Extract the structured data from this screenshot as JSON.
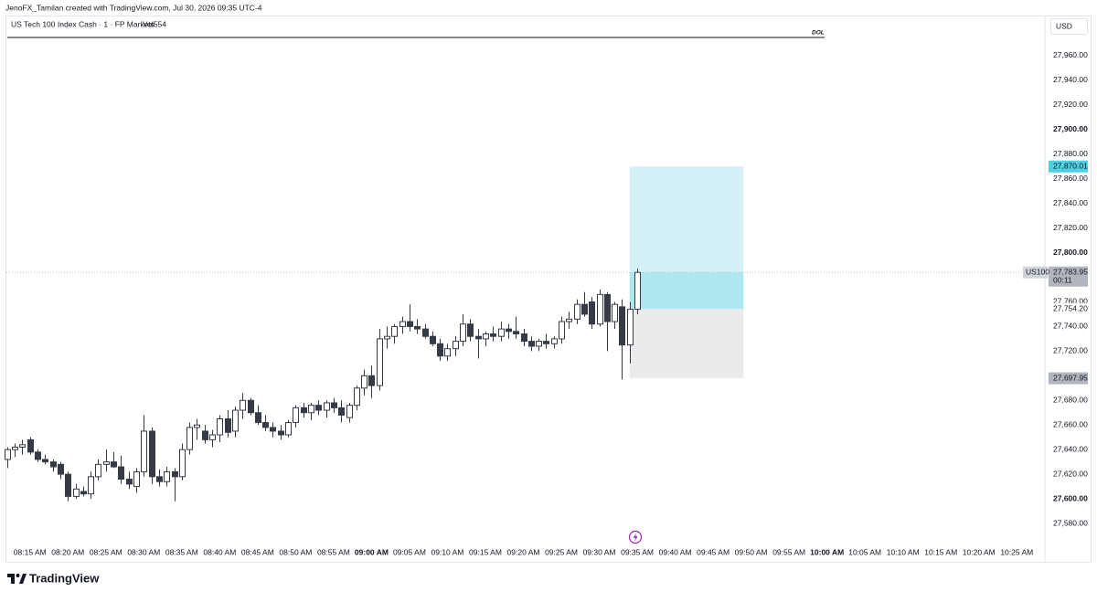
{
  "header": "JenoFX_Tamilan created with TradingView.com, Jul 30, 2026 09:35 UTC-4",
  "footer": "TradingView",
  "chart_data": {
    "type": "candlestick",
    "title": "US Tech 100 Index Cash · 1 · FP Markets",
    "volume_label": "Vol554",
    "currency": "USD",
    "symbol": "US100",
    "countdown": "00:11",
    "annotation": "DOL",
    "colors": {
      "up": "#ffffff",
      "down": "#363a45",
      "border": "#363a45"
    },
    "x": [
      492,
      493,
      494,
      495,
      496,
      497,
      498,
      499,
      500,
      501,
      502,
      503,
      504,
      505,
      506,
      507,
      508,
      509,
      510,
      511,
      512,
      513,
      514,
      515,
      516,
      517,
      518,
      519,
      520,
      521,
      522,
      523,
      524,
      525,
      526,
      527,
      528,
      529,
      530,
      531,
      532,
      533,
      534,
      535,
      536,
      537,
      538,
      539,
      540,
      541,
      542,
      543,
      544,
      545,
      546,
      547,
      548,
      549,
      550,
      551,
      552,
      553,
      554,
      555,
      556,
      557,
      558,
      559,
      560,
      561,
      562,
      563,
      564,
      565,
      566,
      567,
      568,
      569,
      570,
      571,
      572,
      573,
      574,
      575
    ],
    "open": [
      27632,
      27640,
      27642,
      27648,
      27638,
      27632,
      27630,
      27628,
      27620,
      27602,
      27606,
      27604,
      27618,
      27628,
      27630,
      27626,
      27616,
      27610,
      27622,
      27655,
      27618,
      27614,
      27622,
      27618,
      27640,
      27658,
      27655,
      27648,
      27652,
      27665,
      27655,
      27672,
      27680,
      27670,
      27662,
      27658,
      27655,
      27652,
      27662,
      27674,
      27670,
      27676,
      27672,
      27678,
      27674,
      27666,
      27676,
      27690,
      27700,
      27692,
      27730,
      27732,
      27740,
      27744,
      27740,
      27738,
      27732,
      27726,
      27716,
      27722,
      27728,
      27742,
      27732,
      27730,
      27734,
      27732,
      27738,
      27736,
      27734,
      27728,
      27724,
      27728,
      27726,
      27730,
      27744,
      27746,
      27758,
      27760,
      27742,
      27766,
      27744,
      27756,
      27725,
      27754
    ],
    "high": [
      27642,
      27645,
      27648,
      27650,
      27640,
      27636,
      27632,
      27630,
      27622,
      27612,
      27610,
      27622,
      27632,
      27640,
      27638,
      27635,
      27622,
      27625,
      27668,
      27658,
      27624,
      27626,
      27625,
      27645,
      27662,
      27665,
      27660,
      27656,
      27668,
      27672,
      27675,
      27686,
      27682,
      27676,
      27668,
      27662,
      27660,
      27664,
      27676,
      27678,
      27678,
      27680,
      27680,
      27682,
      27680,
      27678,
      27692,
      27705,
      27708,
      27738,
      27740,
      27742,
      27748,
      27758,
      27746,
      27742,
      27736,
      27730,
      27726,
      27732,
      27750,
      27746,
      27738,
      27736,
      27740,
      27744,
      27742,
      27748,
      27738,
      27732,
      27730,
      27734,
      27732,
      27748,
      27752,
      27762,
      27768,
      27764,
      27770,
      27768,
      27760,
      27762,
      27760,
      27787
    ],
    "low": [
      27625,
      27634,
      27636,
      27636,
      27630,
      27628,
      27622,
      27616,
      27598,
      27600,
      27602,
      27600,
      27615,
      27622,
      27625,
      27612,
      27608,
      27605,
      27618,
      27612,
      27610,
      27610,
      27598,
      27615,
      27636,
      27648,
      27645,
      27642,
      27646,
      27650,
      27650,
      27665,
      27668,
      27660,
      27655,
      27650,
      27648,
      27650,
      27658,
      27666,
      27664,
      27668,
      27666,
      27670,
      27662,
      27662,
      27672,
      27684,
      27682,
      27688,
      27722,
      27726,
      27734,
      27736,
      27734,
      27730,
      27724,
      27712,
      27712,
      27716,
      27724,
      27728,
      27714,
      27724,
      27728,
      27728,
      27730,
      27730,
      27724,
      27720,
      27720,
      27722,
      27722,
      27726,
      27738,
      27742,
      27748,
      27738,
      27740,
      27720,
      27738,
      27697,
      27710,
      27750
    ],
    "close": [
      27640,
      27642,
      27644,
      27638,
      27632,
      27630,
      27626,
      27620,
      27602,
      27608,
      27604,
      27618,
      27628,
      27630,
      27626,
      27616,
      27612,
      27622,
      27655,
      27618,
      27614,
      27622,
      27618,
      27640,
      27658,
      27660,
      27648,
      27652,
      27665,
      27654,
      27672,
      27680,
      27670,
      27662,
      27658,
      27655,
      27652,
      27662,
      27674,
      27670,
      27676,
      27672,
      27678,
      27674,
      27668,
      27676,
      27690,
      27700,
      27692,
      27730,
      27732,
      27740,
      27744,
      27740,
      27738,
      27732,
      27726,
      27716,
      27722,
      27728,
      27742,
      27732,
      27730,
      27734,
      27732,
      27738,
      27736,
      27734,
      27728,
      27724,
      27728,
      27726,
      27730,
      27744,
      27746,
      27758,
      27750,
      27742,
      27766,
      27744,
      27758,
      27725,
      27754,
      27783.95
    ],
    "xlim": [
      491.9,
      628.7
    ],
    "xticks": [
      {
        "value": 495,
        "label": "08:15 AM"
      },
      {
        "value": 500,
        "label": "08:20 AM"
      },
      {
        "value": 505,
        "label": "08:25 AM"
      },
      {
        "value": 510,
        "label": "08:30 AM"
      },
      {
        "value": 515,
        "label": "08:35 AM"
      },
      {
        "value": 520,
        "label": "08:40 AM"
      },
      {
        "value": 525,
        "label": "08:45 AM"
      },
      {
        "value": 530,
        "label": "08:50 AM"
      },
      {
        "value": 535,
        "label": "08:55 AM"
      },
      {
        "value": 540,
        "label": "09:00 AM",
        "bold": true
      },
      {
        "value": 545,
        "label": "09:05 AM"
      },
      {
        "value": 550,
        "label": "09:10 AM"
      },
      {
        "value": 555,
        "label": "09:15 AM"
      },
      {
        "value": 560,
        "label": "09:20 AM"
      },
      {
        "value": 565,
        "label": "09:25 AM"
      },
      {
        "value": 570,
        "label": "09:30 AM"
      },
      {
        "value": 575,
        "label": "09:35 AM"
      },
      {
        "value": 580,
        "label": "09:40 AM"
      },
      {
        "value": 585,
        "label": "09:45 AM"
      },
      {
        "value": 590,
        "label": "09:50 AM"
      },
      {
        "value": 595,
        "label": "09:55 AM"
      },
      {
        "value": 600,
        "label": "10:00 AM",
        "bold": true
      },
      {
        "value": 605,
        "label": "10:05 AM"
      },
      {
        "value": 610,
        "label": "10:10 AM"
      },
      {
        "value": 615,
        "label": "10:15 AM"
      },
      {
        "value": 620,
        "label": "10:20 AM"
      },
      {
        "value": 625,
        "label": "10:25 AM"
      }
    ],
    "ylim": [
      27567.4,
      27974.1
    ],
    "yticks": [
      {
        "value": 27580,
        "label": "27,580.00"
      },
      {
        "value": 27600,
        "label": "27,600.00",
        "bold": true
      },
      {
        "value": 27620,
        "label": "27,620.00"
      },
      {
        "value": 27640,
        "label": "27,640.00"
      },
      {
        "value": 27660,
        "label": "27,660.00"
      },
      {
        "value": 27680,
        "label": "27,680.00"
      },
      {
        "value": 27720,
        "label": "27,720.00"
      },
      {
        "value": 27740,
        "label": "27,740.00"
      },
      {
        "value": 27760,
        "label": "27,760.00"
      },
      {
        "value": 27800,
        "label": "27,800.00",
        "bold": true
      },
      {
        "value": 27820,
        "label": "27,820.00"
      },
      {
        "value": 27840,
        "label": "27,840.00"
      },
      {
        "value": 27860,
        "label": "27,860.00"
      },
      {
        "value": 27880,
        "label": "27,880.00"
      },
      {
        "value": 27900,
        "label": "27,900.00",
        "bold": true
      },
      {
        "value": 27920,
        "label": "27,920.00"
      },
      {
        "value": 27940,
        "label": "27,940.00"
      },
      {
        "value": 27960,
        "label": "27,960.00"
      }
    ],
    "grid": false,
    "last_price": {
      "value": 27783.95,
      "label": "27,783.95"
    },
    "position": {
      "x": [
        574,
        589
      ],
      "target": {
        "value": 27870.01,
        "label": "27,870.01"
      },
      "entry": {
        "value": 27754.2,
        "label": "27,754.20"
      },
      "stop": {
        "value": 27697.95,
        "label": "27,697.95"
      }
    }
  }
}
